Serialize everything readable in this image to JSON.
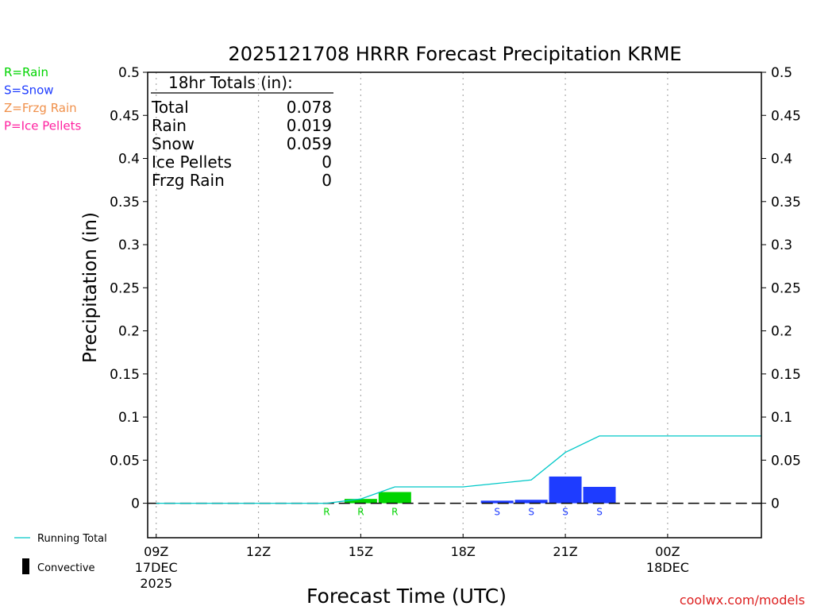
{
  "chart_data": {
    "type": "bar",
    "title": "2025121708 HRRR Forecast Precipitation KRME",
    "xlabel": "Forecast Time (UTC)",
    "ylabel": "Precipitation (in)",
    "ylim": [
      -0.04,
      0.5
    ],
    "xlim": [
      8.75,
      26.75
    ],
    "y_ticks": [
      0,
      0.05,
      0.1,
      0.15,
      0.2,
      0.25,
      0.3,
      0.35,
      0.4,
      0.45,
      0.5
    ],
    "y_tick_labels": [
      "0",
      "0.05",
      "0.1",
      "0.15",
      "0.2",
      "0.25",
      "0.3",
      "0.35",
      "0.4",
      "0.45",
      "0.5"
    ],
    "x_ticks": [
      {
        "hour": 9,
        "lines": [
          "09Z",
          "17DEC",
          "2025"
        ]
      },
      {
        "hour": 12,
        "lines": [
          "12Z"
        ]
      },
      {
        "hour": 15,
        "lines": [
          "15Z"
        ]
      },
      {
        "hour": 18,
        "lines": [
          "18Z"
        ]
      },
      {
        "hour": 21,
        "lines": [
          "21Z"
        ]
      },
      {
        "hour": 24,
        "lines": [
          "00Z",
          "18DEC"
        ]
      }
    ],
    "colors": {
      "rain": "#00d400",
      "snow": "#1e3cff",
      "frzg_rain": "#f0904a",
      "ice_pellets": "#ff22a0",
      "running_total": "#00c8c8",
      "grid": "#aaaaaa"
    },
    "bars": [
      {
        "hour": 14,
        "type": "rain",
        "code": "R",
        "value": 0.0
      },
      {
        "hour": 15,
        "type": "rain",
        "code": "R",
        "value": 0.005
      },
      {
        "hour": 16,
        "type": "rain",
        "code": "R",
        "value": 0.013
      },
      {
        "hour": 19,
        "type": "snow",
        "code": "S",
        "value": 0.003
      },
      {
        "hour": 20,
        "type": "snow",
        "code": "S",
        "value": 0.004
      },
      {
        "hour": 21,
        "type": "snow",
        "code": "S",
        "value": 0.031
      },
      {
        "hour": 22,
        "type": "snow",
        "code": "S",
        "value": 0.019
      }
    ],
    "running_total": {
      "hours": [
        9,
        10,
        11,
        12,
        13,
        14,
        15,
        16,
        17,
        18,
        19,
        20,
        21,
        22,
        23,
        24,
        25,
        26,
        26.75
      ],
      "values": [
        0,
        0,
        0,
        0,
        0,
        0,
        0.005,
        0.019,
        0.019,
        0.019,
        0.023,
        0.027,
        0.059,
        0.078,
        0.078,
        0.078,
        0.078,
        0.078,
        0.078
      ]
    },
    "totals_box": {
      "heading": "18hr Totals (in):",
      "rows": [
        {
          "label": "Total",
          "value": "0.078"
        },
        {
          "label": "Rain",
          "value": "0.019"
        },
        {
          "label": "Snow",
          "value": "0.059"
        },
        {
          "label": "Ice Pellets",
          "value": "0"
        },
        {
          "label": "Frzg Rain",
          "value": "0"
        }
      ]
    },
    "legend_top": [
      {
        "text": "R=Rain",
        "color_key": "rain"
      },
      {
        "text": "S=Snow",
        "color_key": "snow"
      },
      {
        "text": "Z=Frzg Rain",
        "color_key": "frzg_rain"
      },
      {
        "text": "P=Ice Pellets",
        "color_key": "ice_pellets"
      }
    ],
    "legend_bottom": {
      "running_total": "Running Total",
      "convective": "Convective"
    },
    "credit": "coolwx.com/models"
  }
}
